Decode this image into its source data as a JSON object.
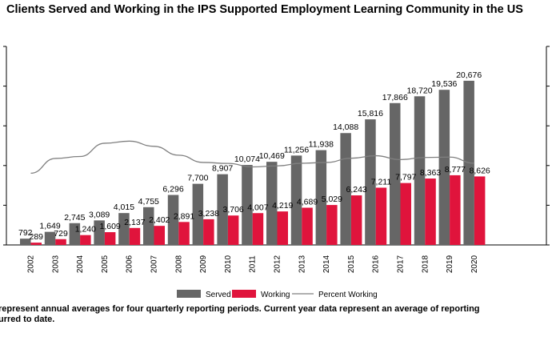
{
  "chart_data": {
    "type": "bar",
    "title": "Clients Served and Working in the IPS Supported Employment Learning Community in the US",
    "categories": [
      "2002",
      "2003",
      "2004",
      "2005",
      "2006",
      "2007",
      "2008",
      "2009",
      "2010",
      "2011",
      "2012",
      "2013",
      "2014",
      "2015",
      "2016",
      "2017",
      "2018",
      "2019",
      "2020"
    ],
    "series": [
      {
        "name": "Served",
        "color": "#666666",
        "values": [
          792,
          1649,
          2745,
          3089,
          4015,
          4755,
          6296,
          7700,
          8907,
          10074,
          10469,
          11256,
          11938,
          14088,
          15816,
          17866,
          18720,
          19536,
          20676
        ]
      },
      {
        "name": "Working",
        "color": "#e0143c",
        "values": [
          289,
          729,
          1240,
          1609,
          2137,
          2402,
          2891,
          3238,
          3706,
          4007,
          4219,
          4689,
          5029,
          6243,
          7211,
          7797,
          8363,
          8777,
          8626
        ]
      }
    ],
    "line_series": {
      "name": "Percent Working",
      "color": "#808080",
      "values": [
        36.5,
        44.2,
        45.2,
        52.1,
        53.2,
        50.5,
        45.9,
        42.1,
        41.6,
        39.8,
        40.3,
        41.7,
        42.1,
        44.3,
        45.6,
        43.6,
        44.7,
        44.9,
        41.7
      ]
    },
    "ylim": [
      0,
      25000
    ],
    "xlabel": "",
    "ylabel": "",
    "grid": false,
    "legend_position": "bottom"
  },
  "footnote": {
    "line1": "represent annual averages for four quarterly reporting periods. Current year data represent an average of reporting",
    "line2": "urred to date."
  }
}
